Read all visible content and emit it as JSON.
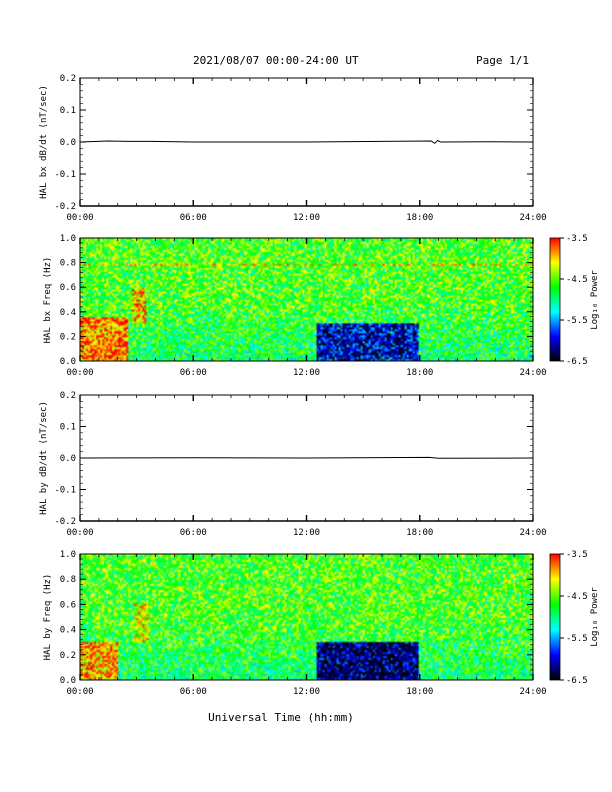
{
  "header": {
    "title": "2021/08/07  00:00-24:00 UT",
    "page": "Page 1/1"
  },
  "xlabel": "Universal Time (hh:mm)",
  "x_ticks": [
    "00:00",
    "06:00",
    "12:00",
    "18:00",
    "24:00"
  ],
  "colorbar": {
    "label": "Log₁₀ Power",
    "ticks": [
      "-3.5",
      "-4.5",
      "-5.5",
      "-6.5"
    ],
    "colors": [
      "#ff0000",
      "#ffff00",
      "#00ff00",
      "#00ffff",
      "#0000ff",
      "#000000"
    ]
  },
  "chart_data": [
    {
      "type": "line",
      "ylabel": "HAL bx dB/dt (nT/sec)",
      "y_ticks": [
        "0.2",
        "0.1",
        "0.0",
        "-0.1",
        "-0.2"
      ],
      "ylim": [
        -0.2,
        0.2
      ],
      "xlim": [
        0,
        24
      ],
      "series": [
        {
          "x": [
            0,
            1.5,
            2.6,
            3.8,
            6,
            12,
            18.6,
            18.8,
            18.95,
            19.1,
            21.8,
            24
          ],
          "values": [
            0,
            0.003,
            0.002,
            0.002,
            0,
            0,
            0.003,
            -0.004,
            0.005,
            0,
            0.001,
            0
          ]
        }
      ]
    },
    {
      "type": "heatmap",
      "ylabel": "HAL bx Freq (Hz)",
      "y_ticks": [
        "1.0",
        "0.8",
        "0.6",
        "0.4",
        "0.2",
        "0.0"
      ],
      "ylim": [
        0,
        1.0
      ],
      "xlim": [
        0,
        24
      ],
      "colorbar_range": [
        -6.5,
        -3.5
      ],
      "features": [
        {
          "t_start": 0,
          "t_end": 2.5,
          "f_low": 0.0,
          "f_high": 0.35,
          "log_power": -3.8
        },
        {
          "t_start": 2.7,
          "t_end": 3.5,
          "f_low": 0.3,
          "f_high": 0.6,
          "log_power": -4.0
        },
        {
          "t_start": 0,
          "t_end": 24,
          "f_low": 0.78,
          "f_high": 0.8,
          "log_power": -4.2
        },
        {
          "t_start": 12.5,
          "t_end": 18,
          "f_low": 0.0,
          "f_high": 0.3,
          "log_power": -6.0
        }
      ]
    },
    {
      "type": "line",
      "ylabel": "HAL by dB/dt (nT/sec)",
      "y_ticks": [
        "0.2",
        "0.1",
        "0.0",
        "-0.1",
        "-0.2"
      ],
      "ylim": [
        -0.2,
        0.2
      ],
      "xlim": [
        0,
        24
      ],
      "series": [
        {
          "x": [
            0,
            6,
            12,
            18.5,
            19.0,
            24
          ],
          "values": [
            0,
            0.001,
            0,
            0.002,
            -0.001,
            0
          ]
        }
      ]
    },
    {
      "type": "heatmap",
      "ylabel": "HAL by Freq (Hz)",
      "y_ticks": [
        "1.0",
        "0.8",
        "0.6",
        "0.4",
        "0.2",
        "0.0"
      ],
      "ylim": [
        0,
        1.0
      ],
      "xlim": [
        0,
        24
      ],
      "colorbar_range": [
        -6.5,
        -3.5
      ],
      "features": [
        {
          "t_start": 0,
          "t_end": 2.0,
          "f_low": 0.0,
          "f_high": 0.3,
          "log_power": -3.9
        },
        {
          "t_start": 2.8,
          "t_end": 3.6,
          "f_low": 0.3,
          "f_high": 0.6,
          "log_power": -4.2
        },
        {
          "t_start": 12.5,
          "t_end": 18,
          "f_low": 0.0,
          "f_high": 0.3,
          "log_power": -6.2
        }
      ]
    }
  ]
}
